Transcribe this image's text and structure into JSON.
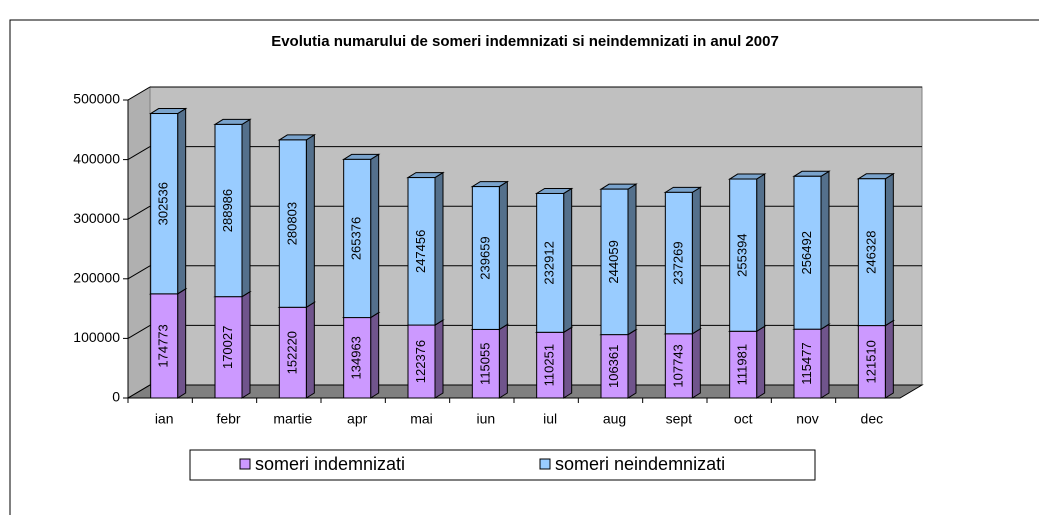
{
  "chart_data": {
    "type": "bar3d_stacked",
    "title": "Evolutia numarului de someri indemnizati si neindemnizati in anul 2007",
    "categories": [
      "ian",
      "febr",
      "martie",
      "apr",
      "mai",
      "iun",
      "iul",
      "aug",
      "sept",
      "oct",
      "nov",
      "dec"
    ],
    "series": [
      {
        "name": "someri indemnizati",
        "color": "#cc99ff",
        "values": [
          174773,
          170027,
          152220,
          134963,
          122376,
          115055,
          110251,
          106361,
          107743,
          111981,
          115477,
          121510
        ]
      },
      {
        "name": "someri neindemnizati",
        "color": "#99ccff",
        "values": [
          302536,
          288986,
          280803,
          265376,
          247456,
          239659,
          232912,
          244059,
          237269,
          255394,
          256492,
          246328
        ]
      }
    ],
    "ylim": [
      0,
      500000
    ],
    "yticks": [
      0,
      100000,
      200000,
      300000,
      400000,
      500000
    ],
    "grid": true
  }
}
